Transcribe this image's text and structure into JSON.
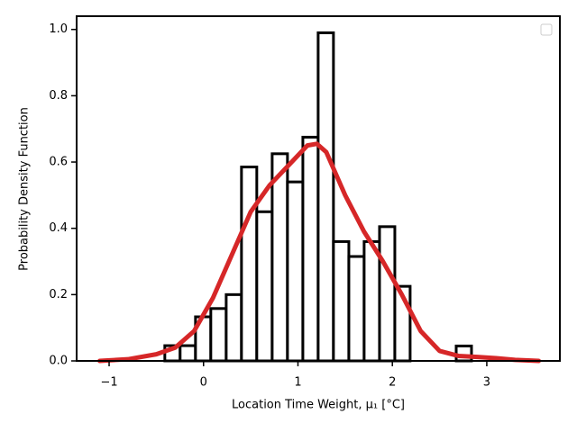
{
  "chart_data": {
    "type": "histogram",
    "xlabel": "Location Time Weight, μ₁ [°C]",
    "ylabel": "Probability Density Function",
    "bins": [
      -0.41,
      -0.248,
      -0.085,
      0.077,
      0.24,
      0.402,
      0.564,
      0.727,
      0.889,
      1.052,
      1.214,
      1.376,
      1.539,
      1.701,
      1.864,
      2.026,
      2.188,
      2.351,
      2.513,
      2.676,
      2.838
    ],
    "values": [
      0.046,
      0.046,
      0.133,
      0.158,
      0.2,
      0.585,
      0.45,
      0.625,
      0.54,
      0.675,
      0.99,
      0.36,
      0.315,
      0.36,
      0.405,
      0.225,
      0,
      0,
      0,
      0.045
    ],
    "color": "#000000",
    "overlay": {
      "type": "line",
      "color": "#d62728",
      "x": [
        -1.1,
        -0.8,
        -0.5,
        -0.3,
        -0.1,
        0.1,
        0.3,
        0.5,
        0.7,
        0.9,
        1.1,
        1.2,
        1.3,
        1.5,
        1.7,
        1.9,
        2.1,
        2.3,
        2.5,
        2.7,
        2.9,
        3.1,
        3.3,
        3.55
      ],
      "values": [
        0.0,
        0.005,
        0.02,
        0.04,
        0.09,
        0.19,
        0.32,
        0.45,
        0.53,
        0.59,
        0.65,
        0.655,
        0.63,
        0.5,
        0.39,
        0.3,
        0.2,
        0.09,
        0.03,
        0.015,
        0.012,
        0.008,
        0.003,
        0.0
      ]
    },
    "xlim": [
      -1.344,
      3.774
    ],
    "ylim": [
      0,
      1.04
    ],
    "xticks": [
      {
        "value": -1,
        "label": "−1"
      },
      0,
      1,
      2,
      3
    ],
    "yticks": [
      {
        "value": 0,
        "label": "0.0"
      },
      {
        "value": 0.2,
        "label": "0.2"
      },
      {
        "value": 0.4,
        "label": "0.4"
      },
      {
        "value": 0.6,
        "label": "0.6"
      },
      {
        "value": 0.8,
        "label": "0.8"
      },
      {
        "value": 1,
        "label": "1.0"
      }
    ],
    "legend": "upper right"
  }
}
